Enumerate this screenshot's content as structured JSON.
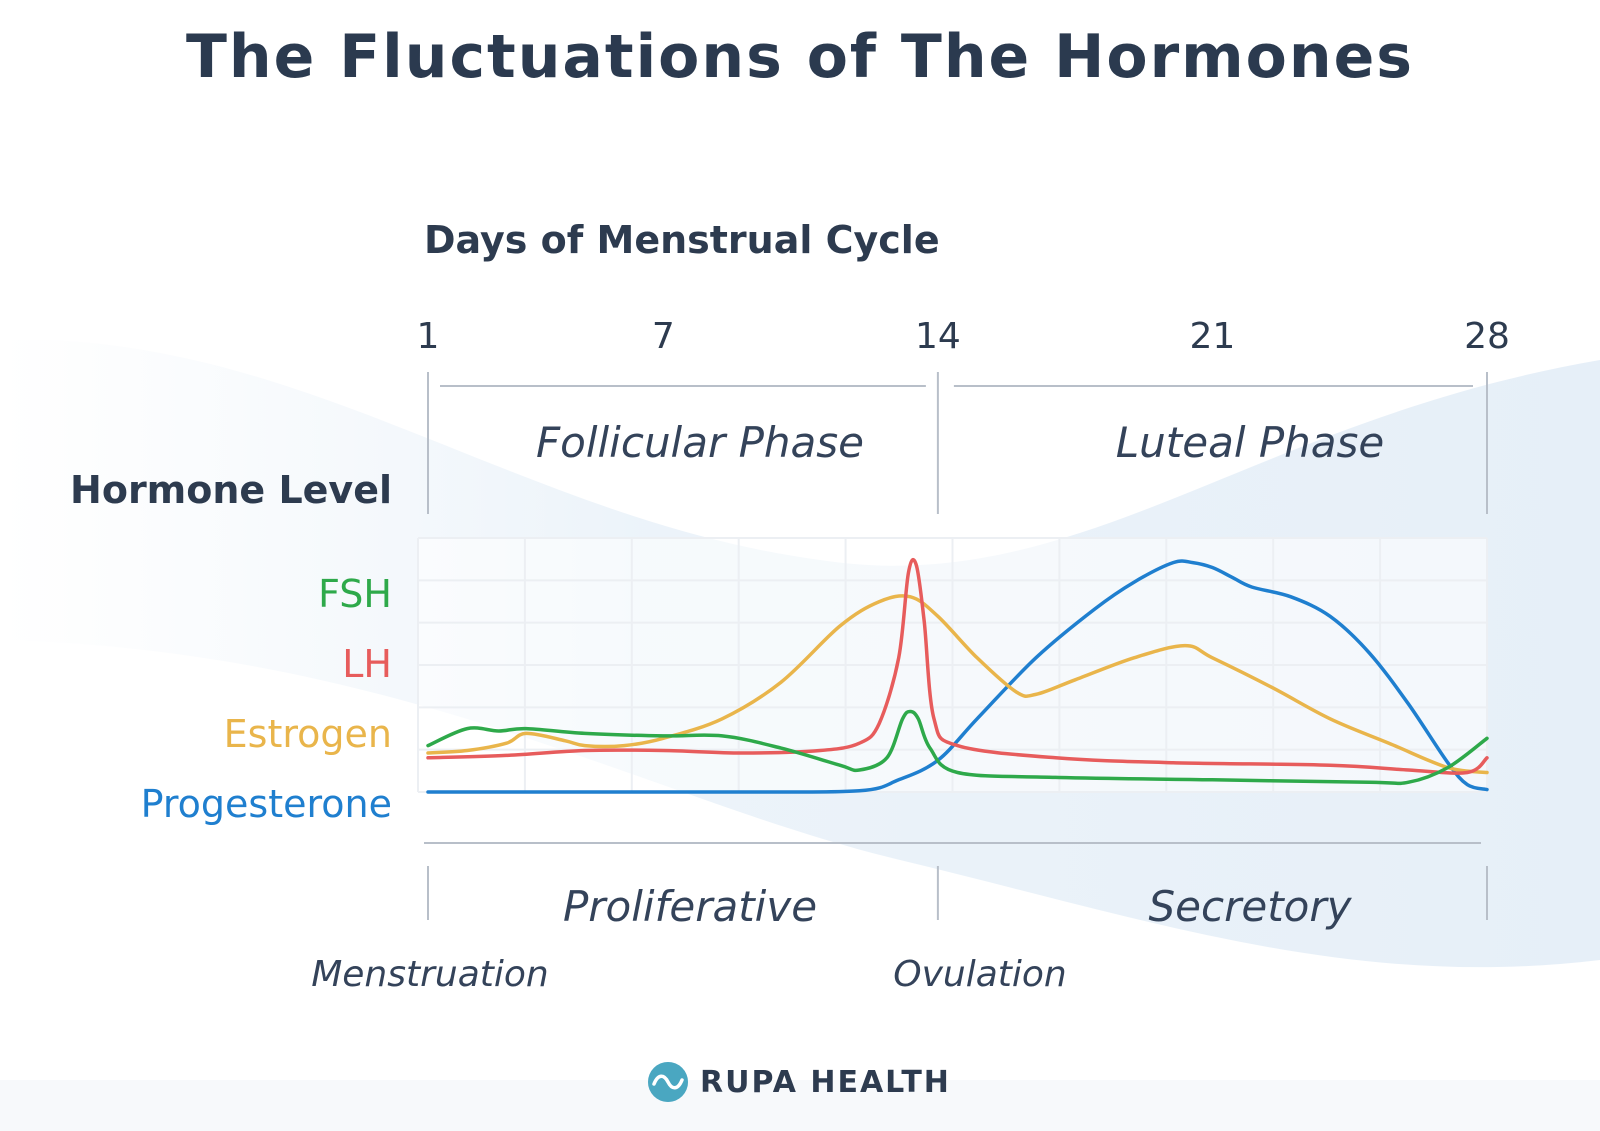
{
  "header": {
    "title": "The Fluctuations of The Hormones"
  },
  "colors": {
    "fsh": "#2ea94a",
    "lh": "#e75c5c",
    "estrogen": "#e9b54b",
    "progesterone": "#1f7fcf",
    "text": "#2d3b4f",
    "grid": "#eceff3",
    "axis": "#b8bfc9"
  },
  "phases": {
    "follicular": "Follicular Phase",
    "luteal": "Luteal Phase",
    "proliferative": "Proliferative",
    "secretory": "Secretory"
  },
  "events": {
    "menstruation": "Menstruation",
    "ovulation": "Ovulation"
  },
  "brand": {
    "name": "RUPA HEALTH",
    "icon": "rupa-health-logo-icon"
  },
  "chart_data": {
    "type": "line",
    "title": "The Fluctuations of The Hormones",
    "xlabel": "Days of Menstrual Cycle",
    "ylabel": "Hormone Level",
    "xlim": [
      1,
      28
    ],
    "ylim": [
      0,
      100
    ],
    "x_ticks": [
      "1",
      "7",
      "14",
      "21",
      "28"
    ],
    "x_tick_values": [
      1,
      7,
      14,
      21,
      28
    ],
    "grid": true,
    "legend_position": "left",
    "series": [
      {
        "name": "FSH",
        "color": "#2ea94a",
        "points": [
          [
            1,
            19
          ],
          [
            2,
            26
          ],
          [
            2.8,
            25
          ],
          [
            3.5,
            26
          ],
          [
            5,
            24
          ],
          [
            7,
            23
          ],
          [
            8.5,
            23
          ],
          [
            10,
            18
          ],
          [
            11.5,
            11
          ],
          [
            12,
            9
          ],
          [
            12.7,
            14
          ],
          [
            13.1,
            30
          ],
          [
            13.3,
            33
          ],
          [
            13.5,
            30
          ],
          [
            13.8,
            18
          ],
          [
            14.5,
            8
          ],
          [
            17,
            6
          ],
          [
            21,
            5
          ],
          [
            25,
            4
          ],
          [
            26,
            4
          ],
          [
            27,
            10
          ],
          [
            28,
            22
          ]
        ]
      },
      {
        "name": "LH",
        "color": "#e75c5c",
        "points": [
          [
            1,
            14
          ],
          [
            3,
            15
          ],
          [
            5,
            17
          ],
          [
            7,
            17
          ],
          [
            9,
            16
          ],
          [
            11,
            17
          ],
          [
            12,
            20
          ],
          [
            12.5,
            28
          ],
          [
            13,
            55
          ],
          [
            13.25,
            90
          ],
          [
            13.45,
            93
          ],
          [
            13.65,
            70
          ],
          [
            13.9,
            30
          ],
          [
            14.5,
            19
          ],
          [
            17,
            14
          ],
          [
            20,
            12
          ],
          [
            24,
            11
          ],
          [
            26,
            9
          ],
          [
            27.5,
            8
          ],
          [
            28,
            14
          ]
        ]
      },
      {
        "name": "Estrogen",
        "color": "#e9b54b",
        "points": [
          [
            1,
            16
          ],
          [
            2,
            17
          ],
          [
            3,
            20
          ],
          [
            3.5,
            24
          ],
          [
            4.5,
            21
          ],
          [
            5,
            19
          ],
          [
            6,
            19
          ],
          [
            7,
            22
          ],
          [
            8.5,
            30
          ],
          [
            10,
            45
          ],
          [
            11.5,
            68
          ],
          [
            12.5,
            78
          ],
          [
            13.3,
            80
          ],
          [
            14,
            72
          ],
          [
            15,
            55
          ],
          [
            16,
            41
          ],
          [
            16.5,
            40
          ],
          [
            17.5,
            46
          ],
          [
            19,
            55
          ],
          [
            20.3,
            60
          ],
          [
            21,
            55
          ],
          [
            22.5,
            43
          ],
          [
            24,
            30
          ],
          [
            25.5,
            20
          ],
          [
            27,
            10
          ],
          [
            28,
            8
          ]
        ]
      },
      {
        "name": "Progesterone",
        "color": "#1f7fcf",
        "points": [
          [
            1,
            0
          ],
          [
            5,
            0
          ],
          [
            9,
            0
          ],
          [
            12,
            0.5
          ],
          [
            13,
            5
          ],
          [
            14,
            13
          ],
          [
            15,
            30
          ],
          [
            16.5,
            55
          ],
          [
            18,
            75
          ],
          [
            19,
            86
          ],
          [
            20,
            94
          ],
          [
            20.5,
            94
          ],
          [
            21,
            92
          ],
          [
            21.5,
            88
          ],
          [
            22,
            84
          ],
          [
            23,
            80
          ],
          [
            24,
            72
          ],
          [
            25,
            57
          ],
          [
            26,
            36
          ],
          [
            27,
            12
          ],
          [
            27.5,
            3
          ],
          [
            28,
            1
          ]
        ]
      }
    ]
  }
}
